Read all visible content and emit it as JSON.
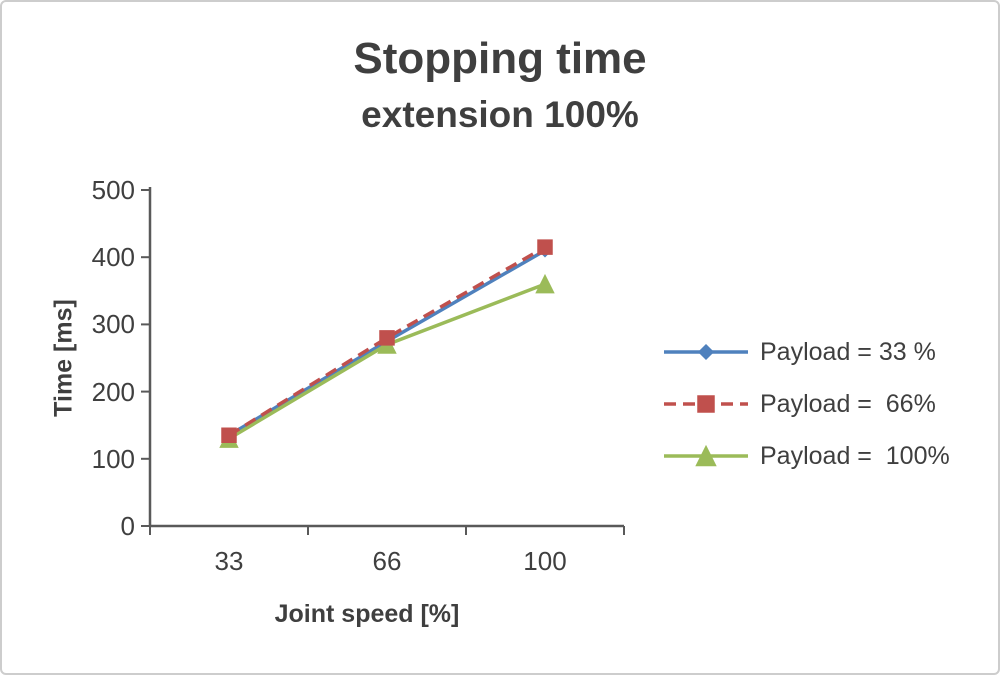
{
  "chart_data": {
    "type": "line",
    "title": "Stopping time",
    "subtitle": "extension 100%",
    "xlabel": "Joint speed [%]",
    "ylabel": "Time [ms]",
    "categories": [
      "33",
      "66",
      "100"
    ],
    "ylim": [
      0,
      500
    ],
    "yticks": [
      0,
      100,
      200,
      300,
      400,
      500
    ],
    "grid": false,
    "legend_position": "right",
    "axis_color": "#595959",
    "text_color": "#3f3f3f",
    "series": [
      {
        "name": "Payload = 33 %",
        "values": [
          135,
          275,
          410
        ],
        "color": "#4F81BD",
        "dash": "solid",
        "marker": "diamond"
      },
      {
        "name": "Payload =  66%",
        "values": [
          135,
          280,
          415
        ],
        "color": "#C0504D",
        "dash": "dashed",
        "marker": "square"
      },
      {
        "name": "Payload =  100%",
        "values": [
          130,
          270,
          360
        ],
        "color": "#9BBB59",
        "dash": "solid",
        "marker": "triangle"
      }
    ]
  }
}
